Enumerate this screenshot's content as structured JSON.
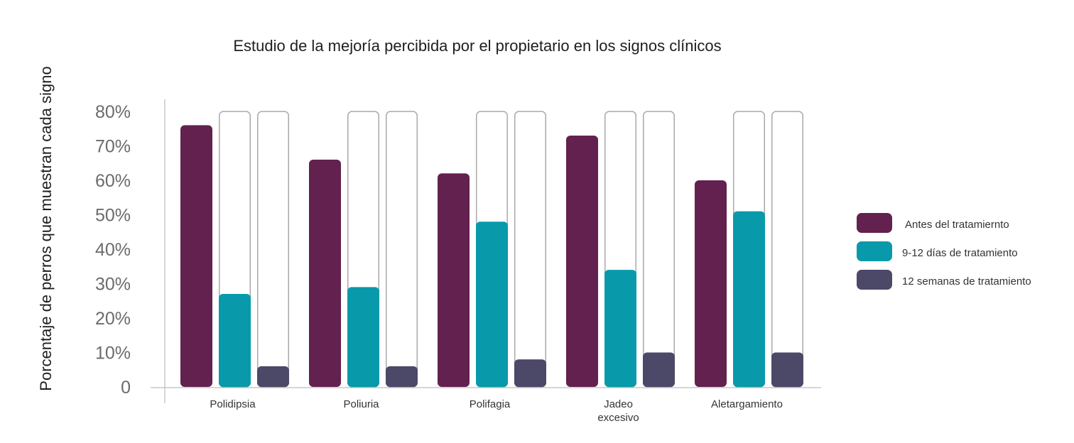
{
  "chart_data": {
    "type": "bar",
    "title": "Estudio de la mejoría percibida por el propietario en los signos clínicos",
    "xlabel": "",
    "ylabel": "Porcentaje de perros que muestran cada signo",
    "categories": [
      [
        "Polidipsia"
      ],
      [
        "Poliuria"
      ],
      [
        "Polifagia"
      ],
      [
        "Jadeo",
        "excesivo"
      ],
      [
        "Aletargamiento"
      ]
    ],
    "series": [
      {
        "name": "Antes del tratamiernto",
        "color": "#62214e",
        "values": [
          76,
          66,
          62,
          73,
          60
        ]
      },
      {
        "name": "9-12 días de tratamiento",
        "color": "#089aab",
        "values": [
          27,
          29,
          48,
          34,
          51
        ]
      },
      {
        "name": "12 semanas de tratamiento",
        "color": "#4c4868",
        "values": [
          6,
          6,
          8,
          10,
          10
        ]
      }
    ],
    "background_max": 80,
    "ylim": [
      0,
      80
    ],
    "yticks": [
      {
        "value": 0,
        "label": "0"
      },
      {
        "value": 10,
        "label": "10%"
      },
      {
        "value": 20,
        "label": "20%"
      },
      {
        "value": 30,
        "label": "30%"
      },
      {
        "value": 40,
        "label": "40%"
      },
      {
        "value": 50,
        "label": "50%"
      },
      {
        "value": 60,
        "label": "60%"
      },
      {
        "value": 70,
        "label": "70%"
      },
      {
        "value": 80,
        "label": "80%"
      }
    ],
    "grid": false,
    "legend_position": "right"
  }
}
